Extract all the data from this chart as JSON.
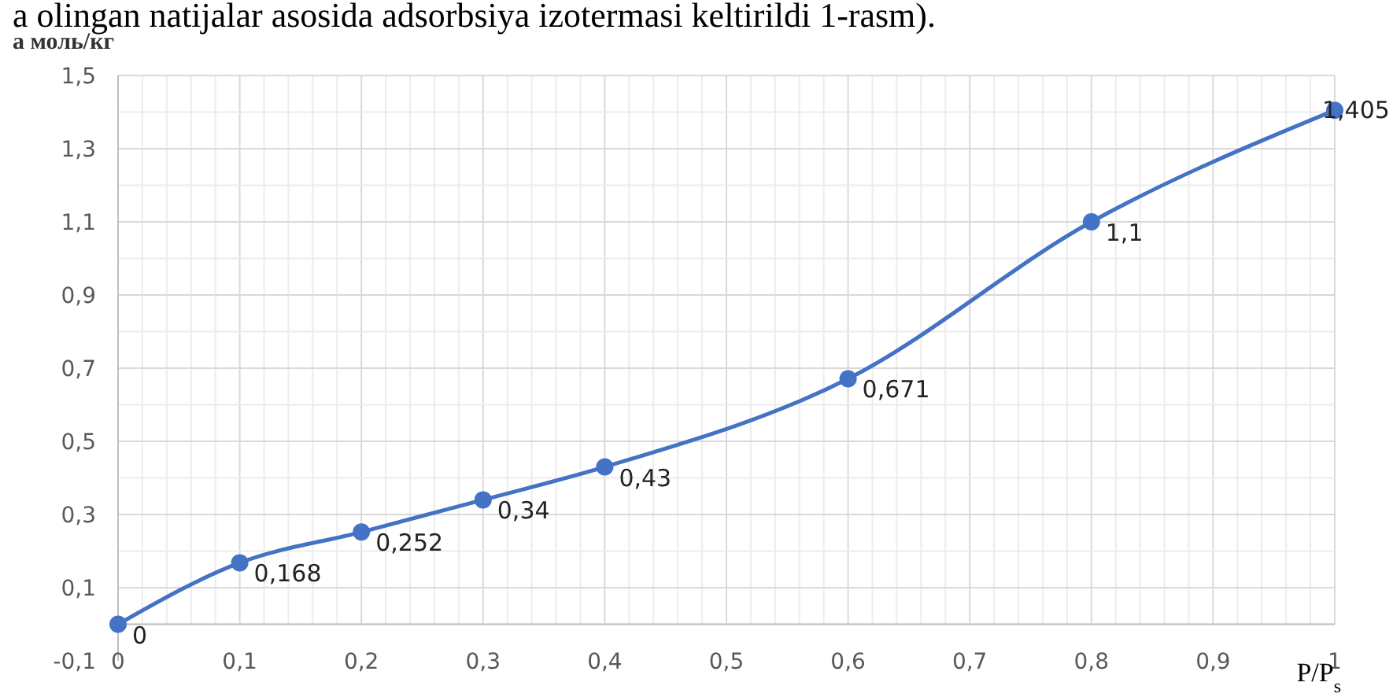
{
  "chart_data": {
    "type": "line",
    "annotations": [
      "a olingan natijalar asosida adsorbsiya izotermasi keltirildi 1-rasm)."
    ],
    "ylabel": "а моль/кг",
    "xlabel": "P/P$_{s}$",
    "x": [
      0,
      0.1,
      0.2,
      0.3,
      0.4,
      0.6,
      0.8,
      1
    ],
    "series": [
      {
        "color": "#4472c4",
        "values": [
          0,
          0.168,
          0.252,
          0.34,
          0.43,
          0.671,
          1.1,
          1.405
        ],
        "value_labels": [
          "0",
          "0,168",
          "0,252",
          "0,34",
          "0,43",
          "0,671",
          "1,1",
          "1,405"
        ]
      }
    ],
    "xlim": [
      0,
      1
    ],
    "ylim": [
      -0.1,
      1.5
    ],
    "xticks": [
      0,
      {
        "value": 0.1,
        "label": "0,1"
      },
      {
        "value": 0.2,
        "label": "0,2"
      },
      {
        "value": 0.3,
        "label": "0,3"
      },
      {
        "value": 0.4,
        "label": "0,4"
      },
      {
        "value": 0.5,
        "label": "0,5"
      },
      {
        "value": 0.6,
        "label": "0,6"
      },
      {
        "value": 0.7,
        "label": "0,7"
      },
      {
        "value": 0.8,
        "label": "0,8"
      },
      {
        "value": 0.9,
        "label": "0,9"
      },
      1
    ],
    "yticks": [
      {
        "value": -0.1,
        "label": "-0,1"
      },
      {
        "value": 0.1,
        "label": "0,1"
      },
      {
        "value": 0.3,
        "label": "0,3"
      },
      {
        "value": 0.5,
        "label": "0,5"
      },
      {
        "value": 0.7,
        "label": "0,7"
      },
      {
        "value": 0.9,
        "label": "0,9"
      },
      {
        "value": 1.1,
        "label": "1,1"
      },
      {
        "value": 1.3,
        "label": "1,3"
      },
      {
        "value": 1.5,
        "label": "1,5"
      }
    ],
    "grid": true,
    "marker": "circle",
    "line_style": "solid"
  }
}
